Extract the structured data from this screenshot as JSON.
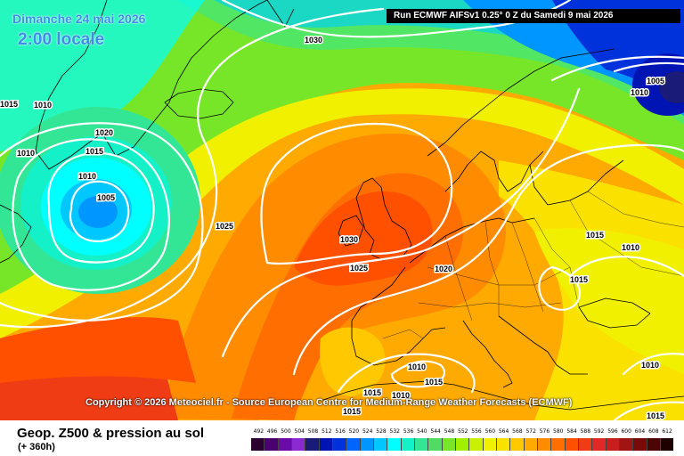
{
  "header": {
    "date": "Dimanche 24 mai 2026",
    "hour": "2:00 locale",
    "run_info": "Run ECMWF AIFSv1 0.25° 0 Z du Samedi 9 mai 2026"
  },
  "copyright": "Copyright © 2026 Meteociel.fr - Source European Centre for Medium-Range Weather Forecasts (ECMWF)",
  "footer": {
    "parameter": "Geop. Z500 & pression au sol",
    "lead_time": "(+ 360h)"
  },
  "legend": {
    "values": [
      "492",
      "496",
      "500",
      "504",
      "508",
      "512",
      "516",
      "520",
      "524",
      "528",
      "532",
      "536",
      "540",
      "544",
      "548",
      "552",
      "556",
      "560",
      "564",
      "568",
      "572",
      "576",
      "580",
      "584",
      "588",
      "592",
      "596",
      "600",
      "604",
      "608",
      "612"
    ],
    "colors": [
      "#2b0030",
      "#4a006e",
      "#6a0aa8",
      "#8a2ad0",
      "#1a1a78",
      "#0014b4",
      "#0032dc",
      "#0064ff",
      "#0096ff",
      "#00c8ff",
      "#00ffff",
      "#14f0c8",
      "#32e696",
      "#50dc64",
      "#78e628",
      "#a0f000",
      "#c8f000",
      "#f0f000",
      "#fae100",
      "#ffc800",
      "#ffaa00",
      "#ff8c00",
      "#ff6e00",
      "#ff5000",
      "#f03c14",
      "#e12828",
      "#c81e1e",
      "#a01414",
      "#780a0a",
      "#4b0505",
      "#1e0000"
    ]
  },
  "map": {
    "isobar_labels": [
      {
        "id": "l1030-north",
        "text": "1030"
      },
      {
        "id": "l1005-ne",
        "text": "1005"
      },
      {
        "id": "l1010-ne",
        "text": "1010"
      },
      {
        "id": "l1015-w",
        "text": "1015"
      },
      {
        "id": "l1010-gr1",
        "text": "1010"
      },
      {
        "id": "l1020-gr",
        "text": "1020"
      },
      {
        "id": "l1015-gr",
        "text": "1015"
      },
      {
        "id": "l1010-gr2",
        "text": "1010"
      },
      {
        "id": "l1010-low",
        "text": "1010"
      },
      {
        "id": "l1005-low",
        "text": "1005"
      },
      {
        "id": "l1025-atl",
        "text": "1025"
      },
      {
        "id": "l1030-uk",
        "text": "1030"
      },
      {
        "id": "l1025-bay",
        "text": "1025"
      },
      {
        "id": "l1020-fr",
        "text": "1020"
      },
      {
        "id": "l1015-east",
        "text": "1015"
      },
      {
        "id": "l1010-east",
        "text": "1010"
      },
      {
        "id": "l1015-balk",
        "text": "1015"
      },
      {
        "id": "l1010-med",
        "text": "1010"
      },
      {
        "id": "l1015-med",
        "text": "1015"
      },
      {
        "id": "l1015-afr1",
        "text": "1015"
      },
      {
        "id": "l1010-afr",
        "text": "1010"
      },
      {
        "id": "l1015-afr2",
        "text": "1015"
      },
      {
        "id": "l1010-se",
        "text": "1010"
      },
      {
        "id": "l1015-se",
        "text": "1015"
      }
    ]
  }
}
